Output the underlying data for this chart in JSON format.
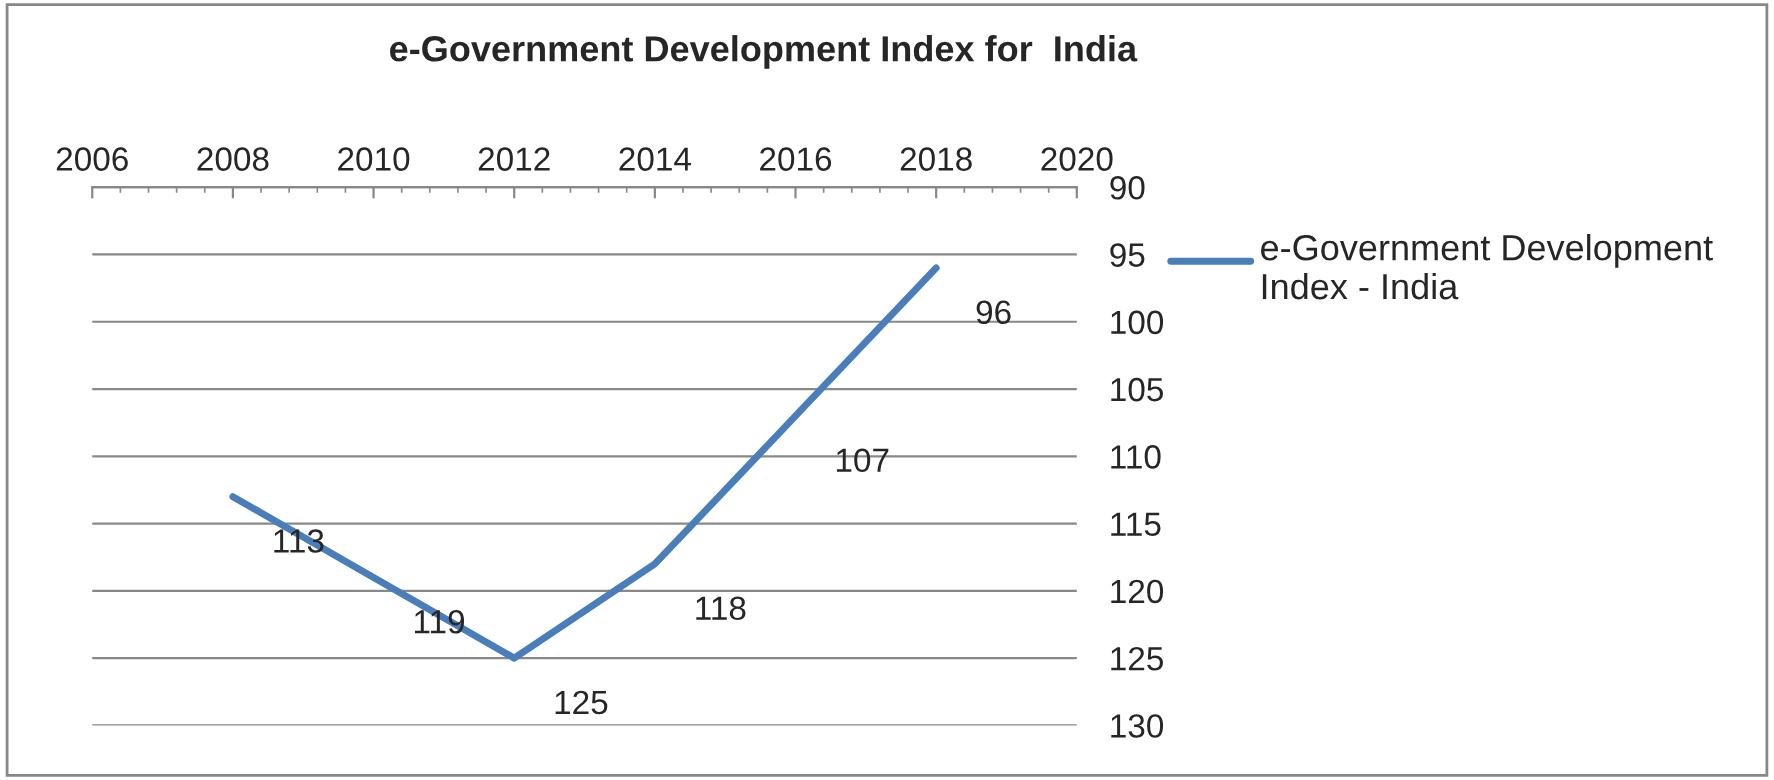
{
  "chart_data": {
    "type": "line",
    "title": "e-Government Development Index for  India",
    "x": [
      2008,
      2010,
      2012,
      2014,
      2016,
      2018
    ],
    "series": [
      {
        "name": "e-Government Development Index - India",
        "color": "#4a7ebb",
        "values": [
          113,
          119,
          125,
          118,
          107,
          96
        ]
      }
    ],
    "xlim": [
      2006,
      2020
    ],
    "xticks": [
      2006,
      2008,
      2010,
      2012,
      2014,
      2016,
      2018,
      2020
    ],
    "ylim": [
      130,
      90
    ],
    "yticks": [
      90,
      95,
      100,
      105,
      110,
      115,
      120,
      125,
      130
    ],
    "grid": "y",
    "legend": "right",
    "data_labels": true,
    "marker": "none",
    "line_style": "solid"
  }
}
